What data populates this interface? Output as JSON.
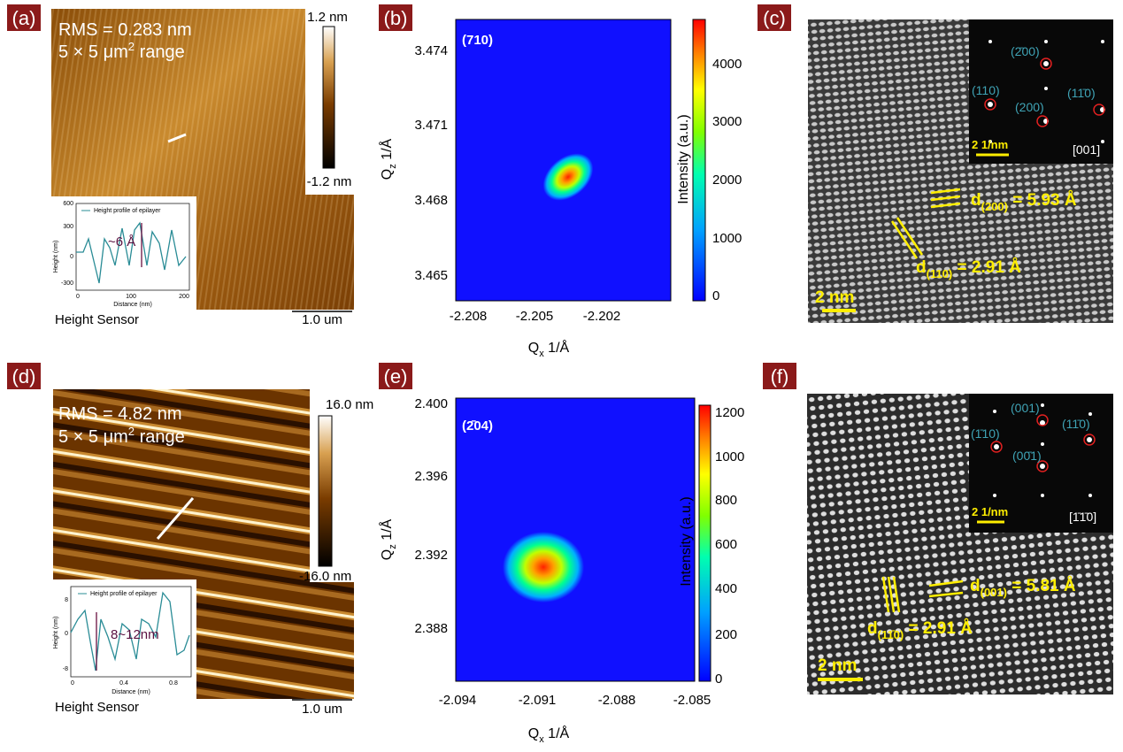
{
  "panels": [
    {
      "label": "(a)",
      "rms": "RMS = 0.283 nm",
      "range": [
        "5 × 5 μm",
        "2",
        " range"
      ],
      "colorbar": [
        "1.2 nm",
        "-1.2 nm"
      ],
      "inset": {
        "legend": "Height profile of epilayer",
        "ylabel": "Height (nm)",
        "xlabel": "Distance (nm)",
        "yticks": [
          "600",
          "300",
          "0",
          "-300"
        ],
        "xticks": [
          "0",
          "100",
          "200"
        ],
        "annotation": "~6 Å"
      },
      "caption": "Height Sensor",
      "scale": "1.0 um"
    },
    {
      "label": "(b)",
      "tag": "(710)",
      "xlabel": [
        "Q",
        "x",
        " 1/Å"
      ],
      "ylabel": [
        "Q",
        "z",
        " 1/Å"
      ],
      "xticks": [
        "-2.208",
        "-2.205",
        "-2.202"
      ],
      "yticks": [
        "3.474",
        "3.471",
        "3.468",
        "3.465"
      ],
      "colorbar_label": "Intensity (a.u.)",
      "colorbar_ticks": [
        "0",
        "1000",
        "2000",
        "3000",
        "4000"
      ]
    },
    {
      "label": "(c)",
      "spots": [
        "(2̄00)",
        "(110)",
        "(11̄0)",
        "(200)"
      ],
      "inset_scale": "2 1/nm",
      "zone": "[001]",
      "d1": [
        "d",
        "(200)",
        " = 5.93 Å"
      ],
      "d2": [
        "d",
        "(110)",
        " = 2.91 Å"
      ],
      "scale": "2 nm"
    },
    {
      "label": "(d)",
      "rms": "RMS = 4.82 nm",
      "range": [
        "5 × 5 μm",
        "2",
        " range"
      ],
      "colorbar": [
        "16.0 nm",
        "-16.0 nm"
      ],
      "inset": {
        "legend": "Height profile of epilayer",
        "ylabel": "Height (nm)",
        "xlabel": "Distance (nm)",
        "yticks": [
          "8",
          "0",
          "-8"
        ],
        "xticks": [
          "0",
          "0.4",
          "0.8"
        ],
        "annotation": "8~12nm"
      },
      "caption": "Height Sensor",
      "scale": "1.0 um"
    },
    {
      "label": "(e)",
      "tag": "(2̄04)",
      "xlabel": [
        "Q",
        "x",
        " 1/Å"
      ],
      "ylabel": [
        "Q",
        "z",
        " 1/Å"
      ],
      "xticks": [
        "-2.094",
        "-2.091",
        "-2.088",
        "-2.085"
      ],
      "yticks": [
        "2.400",
        "2.396",
        "2.392",
        "2.388"
      ],
      "colorbar_label": "Intensity (a.u.)",
      "colorbar_ticks": [
        "0",
        "200",
        "400",
        "600",
        "800",
        "1000",
        "1200"
      ]
    },
    {
      "label": "(f)",
      "spots": [
        "(001)",
        "(1̄10)",
        "(11̄0)",
        "(00̄1)"
      ],
      "inset_scale": "2 1/nm",
      "zone": "[1̄1̄0]",
      "d1": [
        "d",
        "(001)",
        " = 5.81 Å"
      ],
      "d2": [
        "d",
        "(11̄0)",
        " = 2.91 Å"
      ],
      "scale": "2 nm"
    }
  ]
}
